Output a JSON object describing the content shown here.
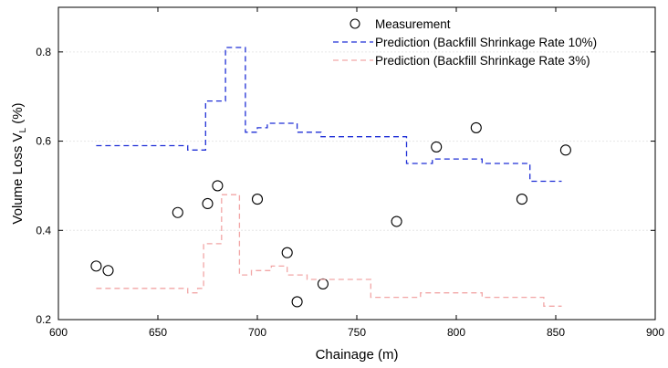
{
  "chart_data": {
    "type": "line",
    "xlabel": "Chainage (m)",
    "ylabel_main": "Volume Loss V",
    "ylabel_sub": "L",
    "ylabel_unit": " (%)",
    "xlim": [
      600,
      900
    ],
    "ylim": [
      0.2,
      0.9
    ],
    "xticks": [
      600,
      650,
      700,
      750,
      800,
      850,
      900
    ],
    "yticks": [
      0.2,
      0.4,
      0.6,
      0.8
    ],
    "ytick_labels": [
      "0.2",
      "0.4",
      "0.6",
      "0.8"
    ],
    "grid": true,
    "legend_position": "top-right",
    "series": [
      {
        "name": "Measurement",
        "kind": "scatter",
        "marker": "circle-open",
        "color": "#000000",
        "points": [
          [
            619,
            0.32
          ],
          [
            625,
            0.31
          ],
          [
            660,
            0.44
          ],
          [
            675,
            0.46
          ],
          [
            680,
            0.5
          ],
          [
            700,
            0.47
          ],
          [
            715,
            0.35
          ],
          [
            720,
            0.24
          ],
          [
            733,
            0.28
          ],
          [
            770,
            0.42
          ],
          [
            790,
            0.587
          ],
          [
            810,
            0.63
          ],
          [
            833,
            0.47
          ],
          [
            855,
            0.58
          ]
        ]
      },
      {
        "name": "Prediction (Backfill Shrinkage Rate 10%)",
        "kind": "step",
        "color": "#1f2fd6",
        "dash": "6,4",
        "points": [
          [
            619,
            0.59
          ],
          [
            665,
            0.59
          ],
          [
            665,
            0.58
          ],
          [
            674,
            0.58
          ],
          [
            674,
            0.69
          ],
          [
            684,
            0.69
          ],
          [
            684,
            0.81
          ],
          [
            694,
            0.81
          ],
          [
            694,
            0.62
          ],
          [
            700,
            0.62
          ],
          [
            700,
            0.63
          ],
          [
            705,
            0.63
          ],
          [
            705,
            0.64
          ],
          [
            720,
            0.64
          ],
          [
            720,
            0.62
          ],
          [
            732,
            0.62
          ],
          [
            732,
            0.61
          ],
          [
            775,
            0.61
          ],
          [
            775,
            0.55
          ],
          [
            788,
            0.55
          ],
          [
            788,
            0.56
          ],
          [
            813,
            0.56
          ],
          [
            813,
            0.55
          ],
          [
            837,
            0.55
          ],
          [
            837,
            0.51
          ],
          [
            853,
            0.51
          ]
        ]
      },
      {
        "name": "Prediction (Backfill Shrinkage Rate  3%)",
        "kind": "step",
        "color": "#f2a6a6",
        "dash": "6,4",
        "points": [
          [
            619,
            0.27
          ],
          [
            665,
            0.27
          ],
          [
            665,
            0.26
          ],
          [
            670,
            0.26
          ],
          [
            670,
            0.27
          ],
          [
            673,
            0.27
          ],
          [
            673,
            0.37
          ],
          [
            682,
            0.37
          ],
          [
            682,
            0.48
          ],
          [
            691,
            0.48
          ],
          [
            691,
            0.3
          ],
          [
            697,
            0.3
          ],
          [
            697,
            0.31
          ],
          [
            707,
            0.31
          ],
          [
            707,
            0.32
          ],
          [
            715,
            0.32
          ],
          [
            715,
            0.3
          ],
          [
            725,
            0.3
          ],
          [
            725,
            0.29
          ],
          [
            757,
            0.29
          ],
          [
            757,
            0.25
          ],
          [
            782,
            0.25
          ],
          [
            782,
            0.26
          ],
          [
            813,
            0.26
          ],
          [
            813,
            0.25
          ],
          [
            844,
            0.25
          ],
          [
            844,
            0.23
          ],
          [
            853,
            0.23
          ]
        ]
      }
    ]
  }
}
